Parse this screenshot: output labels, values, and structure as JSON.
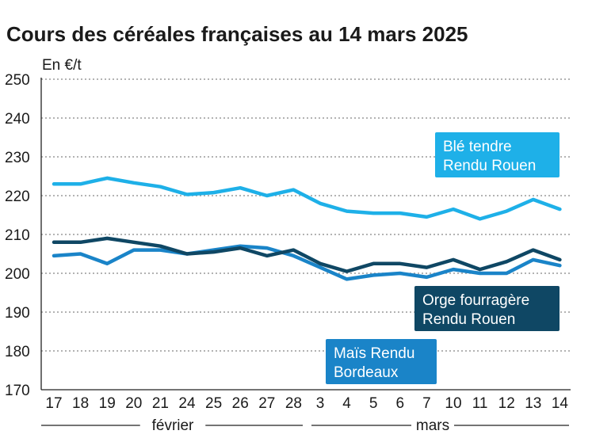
{
  "chart_data": {
    "type": "line",
    "title": "Cours des céréales françaises au 14 mars 2025",
    "ylabel": "En €/t",
    "ylim": [
      170,
      250
    ],
    "yticks": [
      170,
      180,
      190,
      200,
      210,
      220,
      230,
      240,
      250
    ],
    "categories": [
      "17",
      "18",
      "19",
      "20",
      "21",
      "24",
      "25",
      "26",
      "27",
      "28",
      "3",
      "4",
      "5",
      "6",
      "7",
      "10",
      "11",
      "12",
      "13",
      "14"
    ],
    "month_labels": [
      "février",
      "mars"
    ],
    "series": [
      {
        "name": "Blé tendre Rendu Rouen",
        "label_lines": [
          "Blé tendre",
          "Rendu Rouen"
        ],
        "color": "#1eb0e8",
        "values": [
          223,
          223,
          224.5,
          223.3,
          222.3,
          220.3,
          220.8,
          222,
          220,
          221.5,
          218,
          216,
          215.5,
          215.5,
          214.5,
          216.5,
          214,
          216,
          219,
          216.5
        ]
      },
      {
        "name": "Orge fourragère Rendu Rouen",
        "label_lines": [
          "Orge fourragère",
          "Rendu Rouen"
        ],
        "color": "#0f4764",
        "values": [
          208,
          208,
          209,
          208,
          207,
          205,
          205.5,
          206.5,
          204.5,
          206,
          202.5,
          200.5,
          202.5,
          202.5,
          201.5,
          203.5,
          201,
          203,
          206,
          203.5
        ]
      },
      {
        "name": "Maïs Rendu Bordeaux",
        "label_lines": [
          "Maïs Rendu",
          "Bordeaux"
        ],
        "color": "#1a84c8",
        "values": [
          204.5,
          205,
          202.5,
          206,
          206,
          205,
          206,
          207,
          206.5,
          204.5,
          201.5,
          198.5,
          199.5,
          200,
          199,
          201,
          200,
          200,
          203.5,
          202
        ]
      }
    ]
  }
}
